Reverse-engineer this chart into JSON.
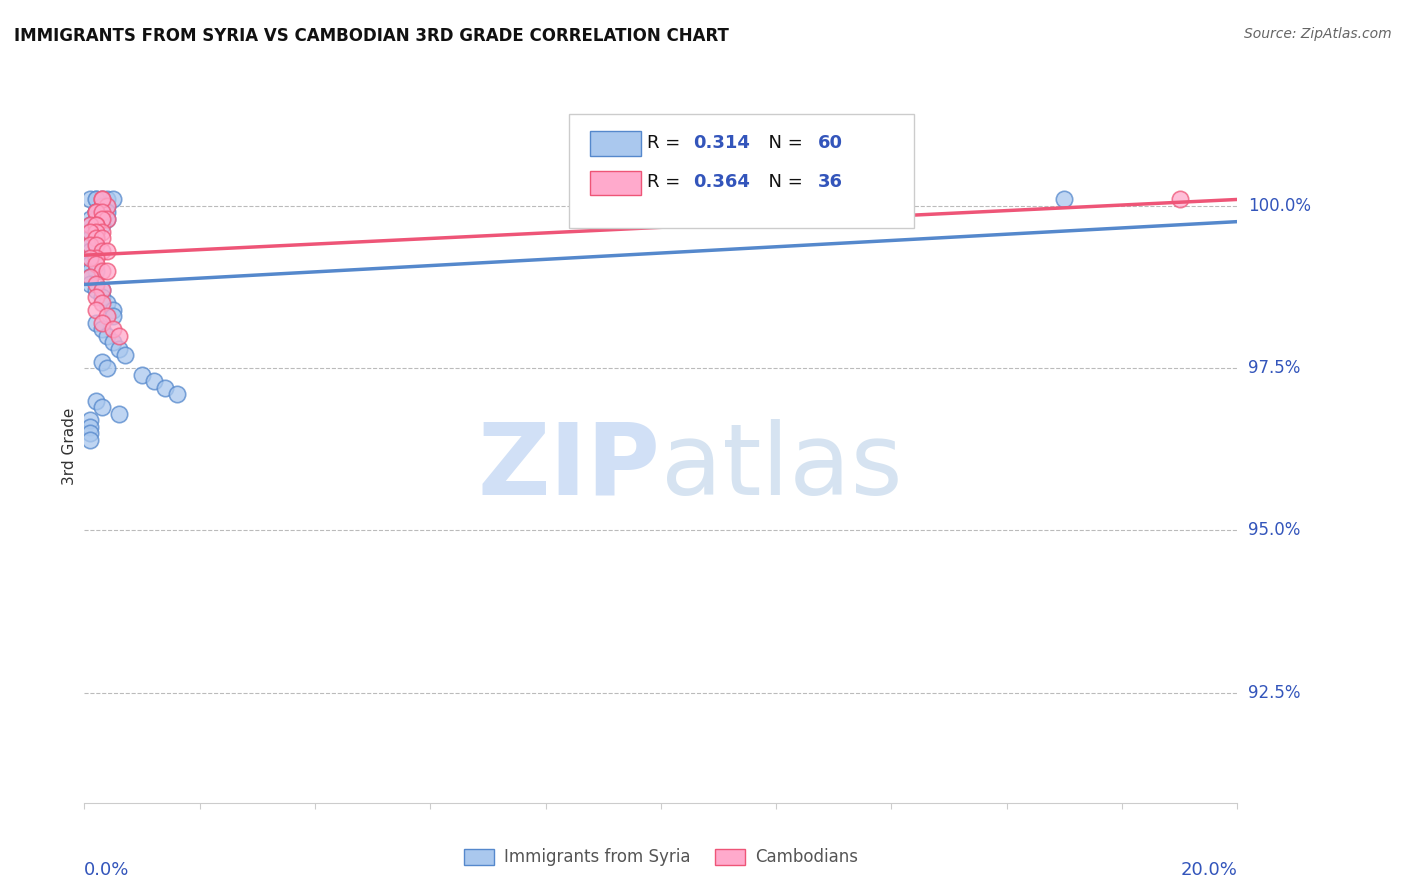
{
  "title": "IMMIGRANTS FROM SYRIA VS CAMBODIAN 3RD GRADE CORRELATION CHART",
  "source": "Source: ZipAtlas.com",
  "ylabel": "3rd Grade",
  "ylabel_right_labels": [
    "100.0%",
    "97.5%",
    "95.0%",
    "92.5%"
  ],
  "ylabel_right_values": [
    1.0,
    0.975,
    0.95,
    0.925
  ],
  "xmin": 0.0,
  "xmax": 0.2,
  "ymin": 0.908,
  "ymax": 1.018,
  "blue_color": "#5588CC",
  "pink_color": "#EE5577",
  "blue_fill": "#AAC8EE",
  "pink_fill": "#FFAACC",
  "grid_color": "#BBBBBB",
  "syria_x": [
    0.002,
    0.003,
    0.003,
    0.004,
    0.003,
    0.004,
    0.005,
    0.002,
    0.001,
    0.002,
    0.002,
    0.003,
    0.003,
    0.004,
    0.002,
    0.001,
    0.003,
    0.002,
    0.004,
    0.003,
    0.001,
    0.001,
    0.001,
    0.002,
    0.001,
    0.002,
    0.001,
    0.001,
    0.001,
    0.001,
    0.001,
    0.002,
    0.001,
    0.001,
    0.002,
    0.003,
    0.003,
    0.004,
    0.005,
    0.005,
    0.002,
    0.003,
    0.004,
    0.005,
    0.006,
    0.007,
    0.003,
    0.004,
    0.01,
    0.012,
    0.014,
    0.016,
    0.002,
    0.003,
    0.006,
    0.001,
    0.001,
    0.001,
    0.001,
    0.17
  ],
  "syria_y": [
    1.001,
    1.001,
    1.0,
    1.0,
    1.0,
    1.001,
    1.001,
    0.999,
    1.001,
    1.001,
    0.999,
    0.999,
    1.0,
    0.999,
    0.999,
    0.998,
    0.998,
    0.998,
    0.998,
    0.997,
    0.997,
    0.996,
    0.996,
    0.996,
    0.995,
    0.995,
    0.994,
    0.993,
    0.992,
    0.991,
    0.99,
    0.99,
    0.989,
    0.988,
    0.987,
    0.987,
    0.986,
    0.985,
    0.984,
    0.983,
    0.982,
    0.981,
    0.98,
    0.979,
    0.978,
    0.977,
    0.976,
    0.975,
    0.974,
    0.973,
    0.972,
    0.971,
    0.97,
    0.969,
    0.968,
    0.967,
    0.966,
    0.965,
    0.964,
    1.001
  ],
  "cambodian_x": [
    0.003,
    0.004,
    0.003,
    0.002,
    0.002,
    0.003,
    0.004,
    0.003,
    0.002,
    0.001,
    0.002,
    0.003,
    0.002,
    0.001,
    0.002,
    0.003,
    0.001,
    0.002,
    0.003,
    0.004,
    0.002,
    0.001,
    0.002,
    0.003,
    0.004,
    0.001,
    0.002,
    0.003,
    0.002,
    0.003,
    0.002,
    0.004,
    0.003,
    0.005,
    0.006,
    0.19
  ],
  "cambodian_y": [
    1.001,
    1.0,
    1.001,
    0.999,
    0.999,
    0.999,
    0.998,
    0.998,
    0.997,
    0.997,
    0.997,
    0.996,
    0.996,
    0.996,
    0.995,
    0.995,
    0.994,
    0.994,
    0.993,
    0.993,
    0.992,
    0.992,
    0.991,
    0.99,
    0.99,
    0.989,
    0.988,
    0.987,
    0.986,
    0.985,
    0.984,
    0.983,
    0.982,
    0.981,
    0.98,
    1.001
  ]
}
